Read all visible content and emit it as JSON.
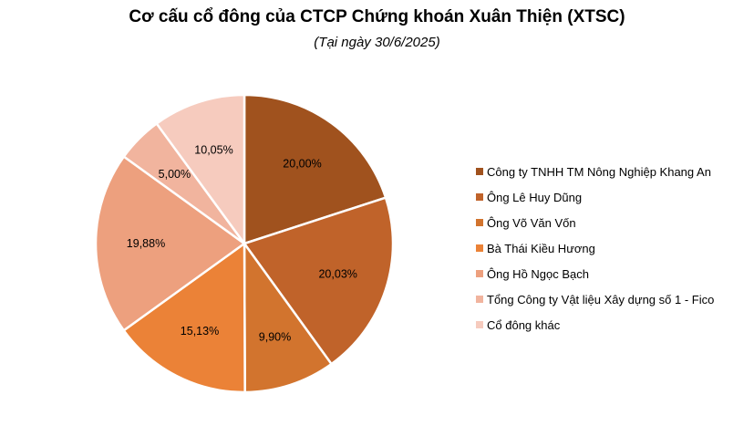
{
  "chart_data": {
    "type": "pie",
    "title": "Cơ cấu cổ đông của CTCP Chứng khoán Xuân Thiện (XTSC)",
    "subtitle": "(Tại ngày 30/6/2025)",
    "legend_position": "right",
    "series": [
      {
        "name": "",
        "slices": [
          {
            "label": "Công ty TNHH TM Nông Nghiệp Khang An",
            "value": 20.0,
            "value_label": "20,00%",
            "color": "#A0521E"
          },
          {
            "label": "Ông Lê Huy Dũng",
            "value": 20.03,
            "value_label": "20,03%",
            "color": "#C0632A"
          },
          {
            "label": "Ông Võ Văn Vốn",
            "value": 9.9,
            "value_label": "9,90%",
            "color": "#D2742E"
          },
          {
            "label": "Bà Thái Kiều Hương",
            "value": 15.13,
            "value_label": "15,13%",
            "color": "#EB8237"
          },
          {
            "label": "Ông Hồ Ngọc Bạch",
            "value": 19.88,
            "value_label": "19,88%",
            "color": "#EDA07E"
          },
          {
            "label": "Tổng Công ty Vật liệu Xây dựng số 1 - Fico",
            "value": 5.0,
            "value_label": "5,00%",
            "color": "#F1B49E"
          },
          {
            "label": "Cổ đông khác",
            "value": 10.05,
            "value_label": "10,05%",
            "color": "#F6CBBE"
          }
        ]
      }
    ]
  }
}
